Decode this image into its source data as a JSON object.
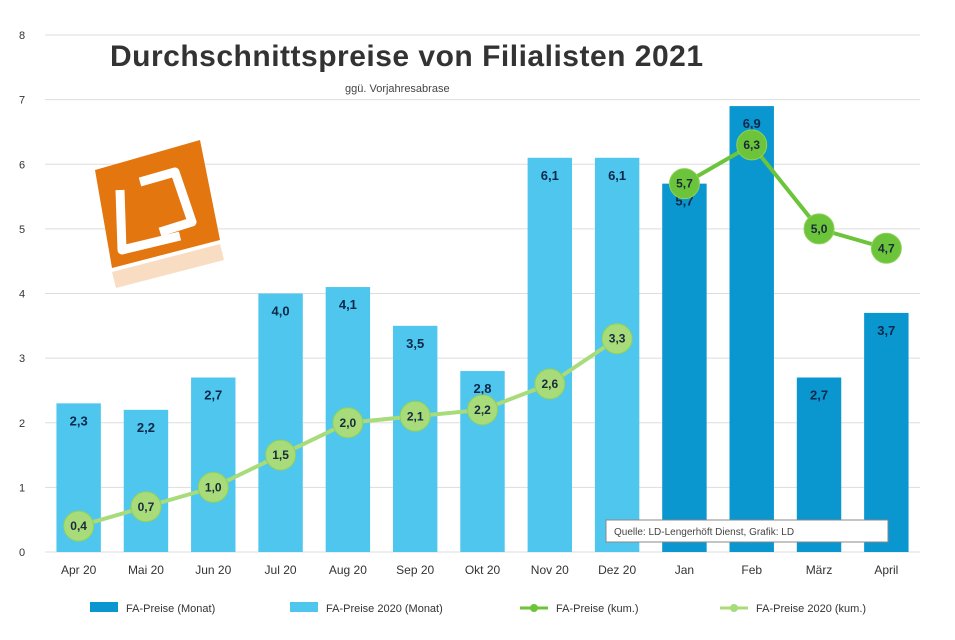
{
  "chart_data": {
    "type": "bar",
    "title": "Durchschnittspreise von Filialisten 2021",
    "subtitle": "ggü. Vorjahresabrase",
    "ylim": [
      0,
      8
    ],
    "yticks": [
      0,
      1,
      2,
      3,
      4,
      5,
      6,
      7,
      8
    ],
    "grid": true,
    "legend_position": "bottom",
    "categories": [
      "Apr 20",
      "Mai 20",
      "Jun 20",
      "Jul 20",
      "Aug 20",
      "Sep 20",
      "Okt 20",
      "Nov 20",
      "Dez 20",
      "Jan",
      "Feb",
      "März",
      "April"
    ],
    "series": [
      {
        "name": "FA-Preise (Monat)",
        "kind": "bar",
        "color": "#0a96cf",
        "values": [
          null,
          null,
          null,
          null,
          null,
          null,
          null,
          null,
          null,
          5.7,
          6.9,
          2.7,
          3.7
        ],
        "labels": [
          "",
          "",
          "",
          "",
          "",
          "",
          "",
          "",
          "",
          "5,7",
          "6,9",
          "2,7",
          "3,7"
        ]
      },
      {
        "name": "FA-Preise 2020 (Monat)",
        "kind": "bar",
        "color": "#4fc6ee",
        "values": [
          2.3,
          2.2,
          2.7,
          4.0,
          4.1,
          3.5,
          2.8,
          6.1,
          6.1,
          null,
          null,
          null,
          null
        ],
        "labels": [
          "2,3",
          "2,2",
          "2,7",
          "4,0",
          "4,1",
          "3,5",
          "2,8",
          "6,1",
          "6,1",
          "",
          "",
          "",
          ""
        ]
      },
      {
        "name": "FA-Preise (kum.)",
        "kind": "line",
        "color": "#6cc43a",
        "values": [
          null,
          null,
          null,
          null,
          null,
          null,
          null,
          null,
          null,
          5.7,
          6.3,
          5.0,
          4.7
        ],
        "labels": [
          "",
          "",
          "",
          "",
          "",
          "",
          "",
          "",
          "",
          "5,7",
          "6,3",
          "5,0",
          "4,7"
        ]
      },
      {
        "name": "FA-Preise 2020 (kum.)",
        "kind": "line",
        "color": "#a8db7a",
        "values": [
          0.4,
          0.7,
          1.0,
          1.5,
          2.0,
          2.1,
          2.2,
          2.6,
          3.3,
          null,
          null,
          null,
          null
        ],
        "labels": [
          "0,4",
          "0,7",
          "1,0",
          "1,5",
          "2,0",
          "2,1",
          "2,2",
          "2,6",
          "3,3",
          "",
          "",
          "",
          ""
        ]
      }
    ],
    "annotation": "Quelle: LD-Lengerhöft Dienst, Grafik: LD"
  },
  "colors": {
    "logo_orange": "#e3760f",
    "grid": "#dddddd"
  },
  "logo_icon": "ld-logo-icon"
}
